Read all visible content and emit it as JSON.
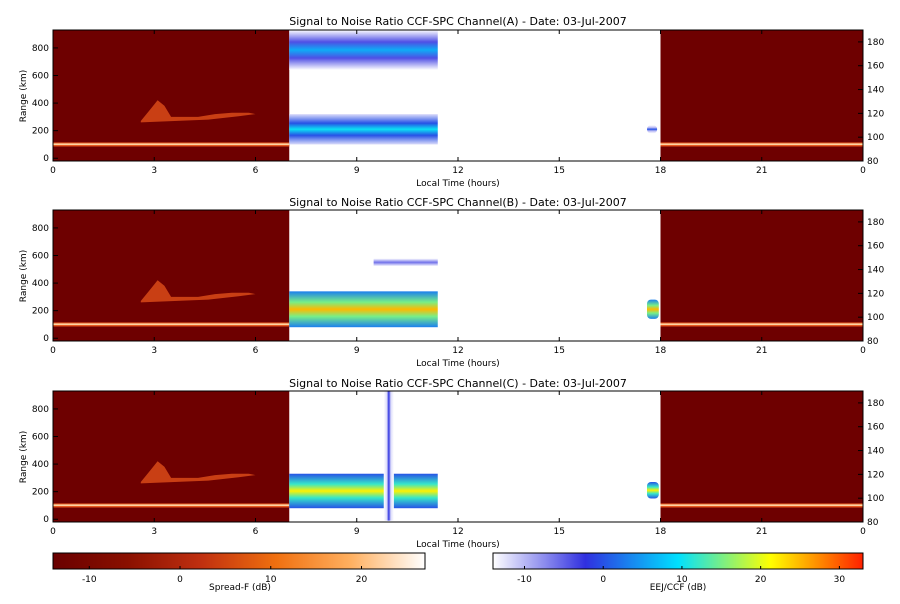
{
  "chart_data": {
    "type": "heatmap",
    "panels": [
      {
        "title": "Signal to Noise Ratio CCF-SPC Channel(A) - Date: 03-Jul-2007",
        "xlabel": "Local Time (hours)",
        "ylabel": "Range (km)",
        "xlim": [
          0,
          24
        ],
        "ylim_left": [
          -20,
          930
        ],
        "ylim_right": [
          80,
          190
        ],
        "night_left_hours": [
          0,
          7
        ],
        "day_hours": [
          7,
          11.4
        ],
        "night_right_hours": [
          18,
          24
        ],
        "day_features": [
          {
            "kind": "band",
            "t0": 7,
            "t1": 11.4,
            "r0": 640,
            "r1": 930,
            "level": 6
          },
          {
            "kind": "band",
            "t0": 7,
            "t1": 11.4,
            "r0": 100,
            "r1": 320,
            "level": 10
          },
          {
            "kind": "blob",
            "t0": 17.6,
            "t1": 17.9,
            "r0": 180,
            "r1": 240,
            "level": 0
          }
        ]
      },
      {
        "title": "Signal to Noise Ratio CCF-SPC Channel(B) - Date: 03-Jul-2007",
        "xlabel": "Local Time (hours)",
        "ylabel": "Range (km)",
        "xlim": [
          0,
          24
        ],
        "ylim_left": [
          -20,
          930
        ],
        "ylim_right": [
          80,
          190
        ],
        "night_left_hours": [
          0,
          7
        ],
        "day_hours": [
          7,
          11.4
        ],
        "night_right_hours": [
          18,
          24
        ],
        "day_features": [
          {
            "kind": "band",
            "t0": 9.5,
            "t1": 11.4,
            "r0": 480,
            "r1": 620,
            "level": -6
          },
          {
            "kind": "band",
            "t0": 7,
            "t1": 11.4,
            "r0": 80,
            "r1": 340,
            "level": 25
          },
          {
            "kind": "blob",
            "t0": 17.6,
            "t1": 17.95,
            "r0": 140,
            "r1": 280,
            "level": 25
          }
        ]
      },
      {
        "title": "Signal to Noise Ratio CCF-SPC Channel(C) - Date: 03-Jul-2007",
        "xlabel": "Local Time (hours)",
        "ylabel": "Range (km)",
        "xlim": [
          0,
          24
        ],
        "ylim_left": [
          -20,
          930
        ],
        "ylim_right": [
          80,
          190
        ],
        "night_left_hours": [
          0,
          7
        ],
        "day_hours": [
          7,
          11.4
        ],
        "night_right_hours": [
          18,
          24
        ],
        "day_features": [
          {
            "kind": "band",
            "t0": 7,
            "t1": 11.4,
            "r0": 80,
            "r1": 330,
            "level": 22
          },
          {
            "kind": "column",
            "t0": 9.8,
            "t1": 10.1,
            "r0": -10,
            "r1": 930,
            "level": -2
          },
          {
            "kind": "blob",
            "t0": 17.6,
            "t1": 17.95,
            "r0": 150,
            "r1": 270,
            "level": 22
          }
        ]
      }
    ],
    "x_ticks": [
      "0",
      "3",
      "6",
      "9",
      "12",
      "15",
      "18",
      "21",
      "0"
    ],
    "y_left_ticks": [
      "0",
      "200",
      "400",
      "600",
      "800"
    ],
    "y_right_ticks": [
      "80",
      "100",
      "120",
      "140",
      "160",
      "180"
    ],
    "colorbars": [
      {
        "label": "Spread-F (dB)",
        "range": [
          -14,
          27
        ],
        "ticks": [
          "-10",
          "0",
          "10",
          "20"
        ],
        "colors": [
          "#6a0000",
          "#8a1000",
          "#c03010",
          "#f07010",
          "#ffb060",
          "#ffffff"
        ]
      },
      {
        "label": "EEJ/CCF (dB)",
        "range": [
          -14,
          33
        ],
        "ticks": [
          "-10",
          "0",
          "10",
          "20",
          "30"
        ],
        "colors": [
          "#ffffff",
          "#3030e0",
          "#00e0ff",
          "#ffff00",
          "#ff2000"
        ]
      }
    ]
  }
}
